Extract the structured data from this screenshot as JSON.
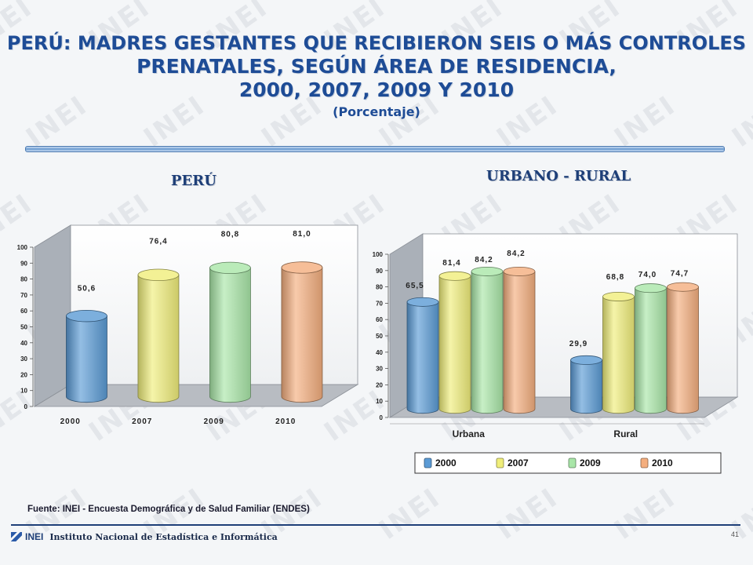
{
  "title": {
    "line1": "PERÚ: MADRES GESTANTES QUE RECIBIERON SEIS O MÁS CONTROLES",
    "line2": "PRENATALES, SEGÚN ÁREA DE RESIDENCIA,",
    "line3": "2000, 2007, 2009 Y 2010",
    "subtitle": "(Porcentaje)"
  },
  "left_panel": {
    "title": "PERÚ"
  },
  "right_panel": {
    "title": "URBANO - RURAL"
  },
  "source": "Fuente: INEI - Encuesta Demográfica y de Salud Familiar (ENDES)",
  "footer": {
    "logo": "INEI",
    "institution": "Instituto Nacional de Estadística e Informática",
    "page_number": "41"
  },
  "watermark": "INEI",
  "colors": {
    "2000": "#5b9bd5",
    "2007": "#f0ee7a",
    "2009": "#a9e6a8",
    "2010": "#f4ae7e",
    "title": "#1e4c96"
  },
  "chart_data": [
    {
      "type": "bar",
      "style": "3d-cylinder",
      "categories": [
        "2000",
        "2007",
        "2009",
        "2010"
      ],
      "values": [
        50.6,
        76.4,
        80.8,
        81.0
      ],
      "labels": [
        "50,6",
        "76,4",
        "80,8",
        "81,0"
      ],
      "ylim": [
        0,
        100
      ],
      "yticks": [
        "0",
        "10",
        "20",
        "30",
        "40",
        "50",
        "60",
        "70",
        "80",
        "90",
        "100"
      ],
      "grid": false,
      "legend": "none"
    },
    {
      "type": "bar",
      "style": "3d-cylinder",
      "categories": [
        "Urbana",
        "Rural"
      ],
      "series": [
        {
          "name": "2000",
          "values": [
            65.5,
            29.9
          ],
          "labels": [
            "65,5",
            "29,9"
          ]
        },
        {
          "name": "2007",
          "values": [
            81.4,
            68.8
          ],
          "labels": [
            "81,4",
            "68,8"
          ]
        },
        {
          "name": "2009",
          "values": [
            84.2,
            74.0
          ],
          "labels": [
            "84,2",
            "74,0"
          ]
        },
        {
          "name": "2010",
          "values": [
            84.2,
            74.7
          ],
          "labels": [
            "84,2",
            "74,7"
          ]
        }
      ],
      "ylim": [
        0,
        100
      ],
      "yticks": [
        "0",
        "10",
        "20",
        "30",
        "40",
        "50",
        "60",
        "70",
        "80",
        "90",
        "100"
      ],
      "grid": false,
      "legend": "bottom"
    }
  ]
}
